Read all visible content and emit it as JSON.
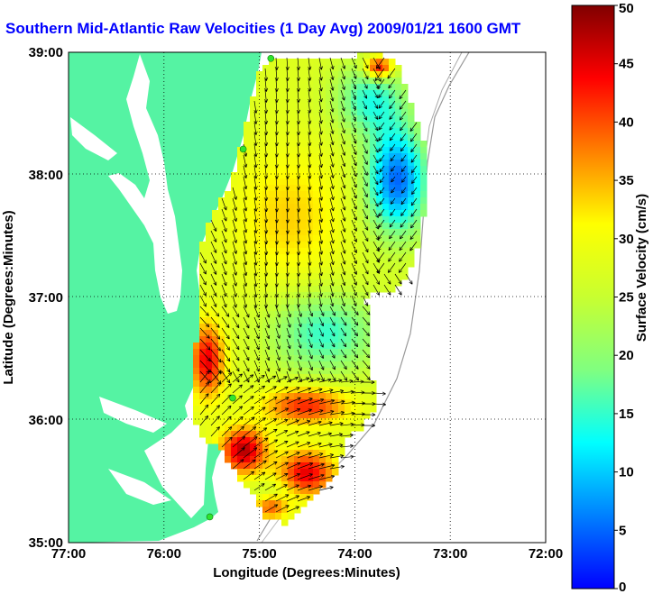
{
  "title": "Southern Mid-Atlantic Raw Velocities (1 Day Avg) 2009/01/21 1600 GMT",
  "xaxis": {
    "label": "Longitude (Degrees:Minutes)",
    "ticks": [
      "77:00",
      "76:00",
      "75:00",
      "74:00",
      "73:00",
      "72:00"
    ]
  },
  "yaxis": {
    "label": "Latitude (Degrees:Minutes)",
    "ticks": [
      "35:00",
      "36:00",
      "37:00",
      "38:00",
      "39:00"
    ]
  },
  "colorbar": {
    "label": "Surface Velocity (cm/s)",
    "ticks": [
      "0",
      "5",
      "10",
      "15",
      "20",
      "25",
      "30",
      "35",
      "40",
      "45",
      "50"
    ],
    "min": 0,
    "max": 50
  },
  "colors": {
    "land": "#55f3a3",
    "title": "#0000ff",
    "station": "#2ee52e",
    "grid": "#000000"
  },
  "stations": [
    {
      "lon": -74.88,
      "lat": 38.95
    },
    {
      "lon": -75.17,
      "lat": 38.21
    },
    {
      "lon": -75.28,
      "lat": 36.18
    },
    {
      "lon": -75.52,
      "lat": 35.21
    }
  ]
}
